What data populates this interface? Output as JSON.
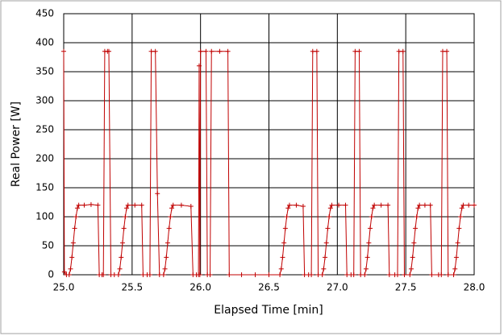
{
  "chart_data": {
    "type": "line",
    "xlabel": "Elapsed Time [min]",
    "ylabel": "Real Power [W]",
    "xlim": [
      25.0,
      28.0
    ],
    "xticks": [
      {
        "value": 25.0,
        "label": "25.0"
      },
      {
        "value": 25.5,
        "label": "25.5"
      },
      {
        "value": 26.0,
        "label": "26.0"
      },
      {
        "value": 26.5,
        "label": "26.5"
      },
      {
        "value": 27.0,
        "label": "27.0"
      },
      {
        "value": 27.5,
        "label": "27.5"
      },
      {
        "value": 28.0,
        "label": "28.0"
      }
    ],
    "ylim": [
      0,
      450
    ],
    "yticks": [
      0,
      50,
      100,
      150,
      200,
      250,
      300,
      350,
      400,
      450
    ],
    "grid": true,
    "series": [
      {
        "color": "#c00000",
        "marker": "+",
        "x": [
          25.0,
          25.005,
          25.02,
          25.04,
          25.05,
          25.06,
          25.07,
          25.08,
          25.09,
          25.1,
          25.11,
          25.15,
          25.2,
          25.25,
          25.26,
          25.28,
          25.29,
          25.3,
          25.32,
          25.33,
          25.345,
          25.37,
          25.4,
          25.41,
          25.42,
          25.43,
          25.44,
          25.45,
          25.46,
          25.47,
          25.52,
          25.57,
          25.58,
          25.61,
          25.63,
          25.64,
          25.67,
          25.685,
          25.7,
          25.73,
          25.74,
          25.75,
          25.76,
          25.77,
          25.78,
          25.79,
          25.8,
          25.86,
          25.93,
          25.945,
          25.97,
          25.985,
          25.99,
          25.995,
          26.0,
          26.04,
          26.05,
          26.07,
          26.08,
          26.14,
          26.2,
          26.21,
          26.3,
          26.4,
          26.5,
          26.58,
          26.59,
          26.6,
          26.61,
          26.62,
          26.63,
          26.64,
          26.65,
          26.7,
          26.75,
          26.76,
          26.79,
          26.81,
          26.82,
          26.85,
          26.86,
          26.89,
          26.9,
          26.91,
          26.92,
          26.93,
          26.94,
          26.95,
          26.96,
          27.01,
          27.06,
          27.07,
          27.1,
          27.12,
          27.13,
          27.16,
          27.17,
          27.2,
          27.21,
          27.22,
          27.23,
          27.24,
          27.25,
          27.26,
          27.27,
          27.32,
          27.37,
          27.38,
          27.42,
          27.44,
          27.45,
          27.48,
          27.49,
          27.53,
          27.54,
          27.55,
          27.56,
          27.57,
          27.58,
          27.59,
          27.6,
          27.64,
          27.68,
          27.69,
          27.74,
          27.76,
          27.77,
          27.8,
          27.81,
          27.85,
          27.86,
          27.87,
          27.88,
          27.89,
          27.9,
          27.91,
          27.92,
          27.96,
          28.0
        ],
        "values": [
          385,
          5,
          0,
          0,
          10,
          30,
          55,
          80,
          100,
          115,
          120,
          120,
          121,
          120,
          0,
          0,
          0,
          385,
          385,
          385,
          0,
          0,
          0,
          10,
          30,
          55,
          80,
          100,
          115,
          120,
          120,
          120,
          0,
          0,
          0,
          385,
          385,
          140,
          0,
          0,
          10,
          30,
          55,
          80,
          100,
          115,
          120,
          120,
          118,
          0,
          0,
          0,
          360,
          0,
          385,
          385,
          0,
          0,
          385,
          385,
          385,
          0,
          0,
          0,
          0,
          0,
          10,
          30,
          55,
          80,
          100,
          115,
          120,
          120,
          118,
          0,
          0,
          0,
          385,
          385,
          0,
          0,
          10,
          30,
          55,
          80,
          100,
          115,
          120,
          120,
          120,
          0,
          0,
          0,
          385,
          385,
          0,
          0,
          10,
          30,
          55,
          80,
          100,
          115,
          120,
          120,
          120,
          0,
          0,
          0,
          385,
          385,
          0,
          0,
          10,
          30,
          55,
          80,
          100,
          115,
          120,
          120,
          120,
          0,
          0,
          0,
          385,
          385,
          0,
          0,
          10,
          30,
          55,
          80,
          100,
          115,
          120,
          120,
          120
        ]
      }
    ]
  }
}
